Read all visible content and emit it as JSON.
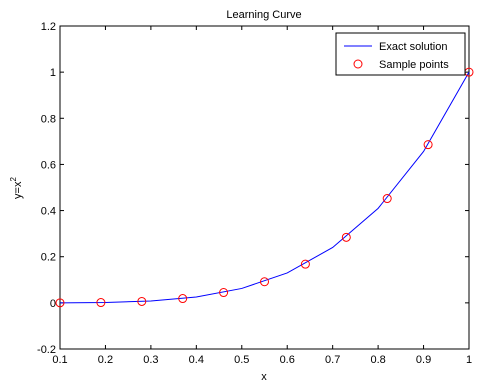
{
  "chart_data": {
    "type": "line",
    "title": "Learning Curve",
    "xlabel": "x",
    "ylabel": "y=x²",
    "xlim": [
      0.1,
      1.0
    ],
    "ylim": [
      -0.2,
      1.2
    ],
    "x_ticks": [
      0.1,
      0.2,
      0.3,
      0.4,
      0.5,
      0.6,
      0.7,
      0.8,
      0.9,
      1.0
    ],
    "x_tick_labels": [
      "0.1",
      "0.2",
      "0.3",
      "0.4",
      "0.5",
      "0.6",
      "0.7",
      "0.8",
      "0.9",
      "1"
    ],
    "y_ticks": [
      -0.2,
      0,
      0.2,
      0.4,
      0.6,
      0.8,
      1.0,
      1.2
    ],
    "y_tick_labels": [
      "-0.2",
      "0",
      "0.2",
      "0.4",
      "0.6",
      "0.8",
      "1",
      "1.2"
    ],
    "legend_position": "top-right",
    "grid": false,
    "series": [
      {
        "name": "Exact solution",
        "style": "line",
        "color": "#0000ff",
        "x": [
          0.1,
          0.2,
          0.3,
          0.4,
          0.5,
          0.6,
          0.7,
          0.8,
          0.9,
          1.0
        ],
        "y": [
          0.0001,
          0.0016,
          0.0081,
          0.0256,
          0.0625,
          0.1296,
          0.2401,
          0.4096,
          0.6561,
          1.0
        ]
      },
      {
        "name": "Sample points",
        "style": "markers",
        "marker": "circle",
        "color": "#ff0000",
        "x": [
          0.1,
          0.19,
          0.28,
          0.37,
          0.46,
          0.55,
          0.64,
          0.73,
          0.82,
          0.91,
          1.0
        ],
        "y": [
          0.0001,
          0.0013,
          0.0061,
          0.0187,
          0.0448,
          0.0915,
          0.1678,
          0.284,
          0.4521,
          0.6857,
          1.0
        ]
      }
    ]
  }
}
